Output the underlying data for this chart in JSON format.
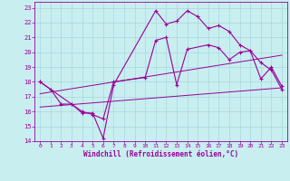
{
  "xlabel": "Windchill (Refroidissement éolien,°C)",
  "bg_color": "#c8eef0",
  "grid_color": "#a8d8dc",
  "line_color": "#990099",
  "xlim": [
    -0.5,
    23.5
  ],
  "ylim": [
    14,
    23.4
  ],
  "xticks": [
    0,
    1,
    2,
    3,
    4,
    5,
    6,
    7,
    8,
    9,
    10,
    11,
    12,
    13,
    14,
    15,
    16,
    17,
    18,
    19,
    20,
    21,
    22,
    23
  ],
  "yticks": [
    14,
    15,
    16,
    17,
    18,
    19,
    20,
    21,
    22,
    23
  ],
  "series1_x": [
    0,
    1,
    2,
    3,
    4,
    5,
    6,
    7,
    11,
    12,
    13,
    14,
    15,
    16,
    17,
    18,
    19,
    20,
    21,
    22,
    23
  ],
  "series1_y": [
    18.0,
    17.5,
    16.5,
    16.5,
    15.9,
    15.9,
    14.2,
    17.8,
    22.8,
    21.9,
    22.1,
    22.8,
    22.4,
    21.6,
    21.8,
    21.4,
    20.5,
    20.1,
    19.3,
    18.8,
    17.5
  ],
  "series2_x": [
    0,
    3,
    4,
    5,
    6,
    7,
    10,
    11,
    12,
    13,
    14,
    16,
    17,
    18,
    19,
    20,
    21,
    22,
    23
  ],
  "series2_y": [
    18.0,
    16.5,
    16.0,
    15.8,
    15.5,
    18.0,
    18.3,
    20.8,
    21.0,
    17.8,
    20.2,
    20.5,
    20.3,
    19.5,
    20.0,
    20.1,
    18.2,
    19.0,
    17.7
  ],
  "series3_x": [
    0,
    23
  ],
  "series3_y": [
    16.3,
    17.6
  ],
  "series4_x": [
    0,
    23
  ],
  "series4_y": [
    17.2,
    19.8
  ]
}
